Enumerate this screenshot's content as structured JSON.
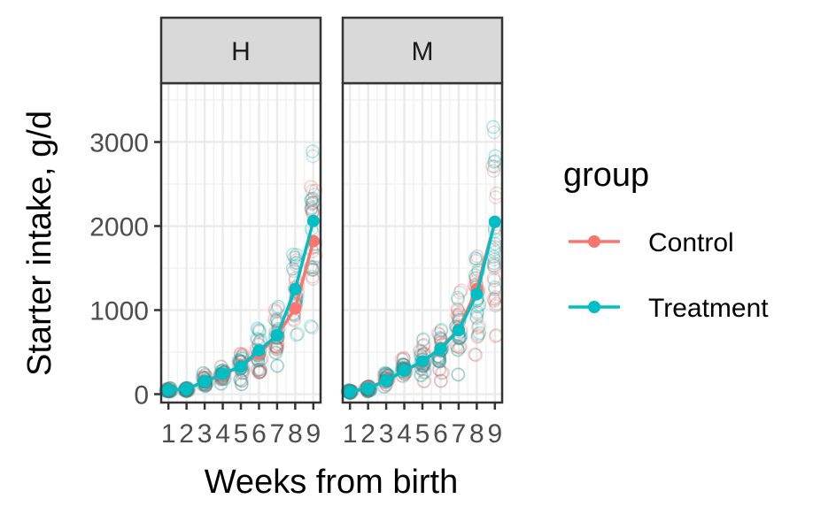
{
  "chart_data": {
    "type": "line",
    "xlabel": "Weeks from birth",
    "ylabel": "Starter intake, g/d",
    "x": [
      1,
      2,
      3,
      4,
      5,
      6,
      7,
      8,
      9
    ],
    "x_ticks": [
      "1",
      "2",
      "3",
      "4",
      "5",
      "6",
      "7",
      "8",
      "9"
    ],
    "ylim": [
      -100,
      3700
    ],
    "y_ticks": [
      0,
      1000,
      2000,
      3000
    ],
    "grid": true,
    "legend": {
      "title": "group",
      "placement": "right",
      "entries": [
        "Control",
        "Treatment"
      ]
    },
    "colors": {
      "Control": "#F8766D",
      "Treatment": "#00BFC4"
    },
    "facets": [
      {
        "label": "H",
        "series": [
          {
            "name": "Control",
            "values": [
              50,
              60,
              150,
              230,
              340,
              480,
              700,
              1020,
              1820
            ]
          },
          {
            "name": "Treatment",
            "values": [
              50,
              60,
              150,
              240,
              330,
              520,
              700,
              1250,
              2060
            ]
          }
        ]
      },
      {
        "label": "M",
        "series": [
          {
            "name": "Control",
            "values": [
              30,
              80,
              160,
              280,
              380,
              550,
              770,
              1250,
              2050
            ]
          },
          {
            "name": "Treatment",
            "values": [
              30,
              70,
              160,
              280,
              390,
              540,
              760,
              1190,
              2050
            ]
          }
        ]
      }
    ]
  }
}
